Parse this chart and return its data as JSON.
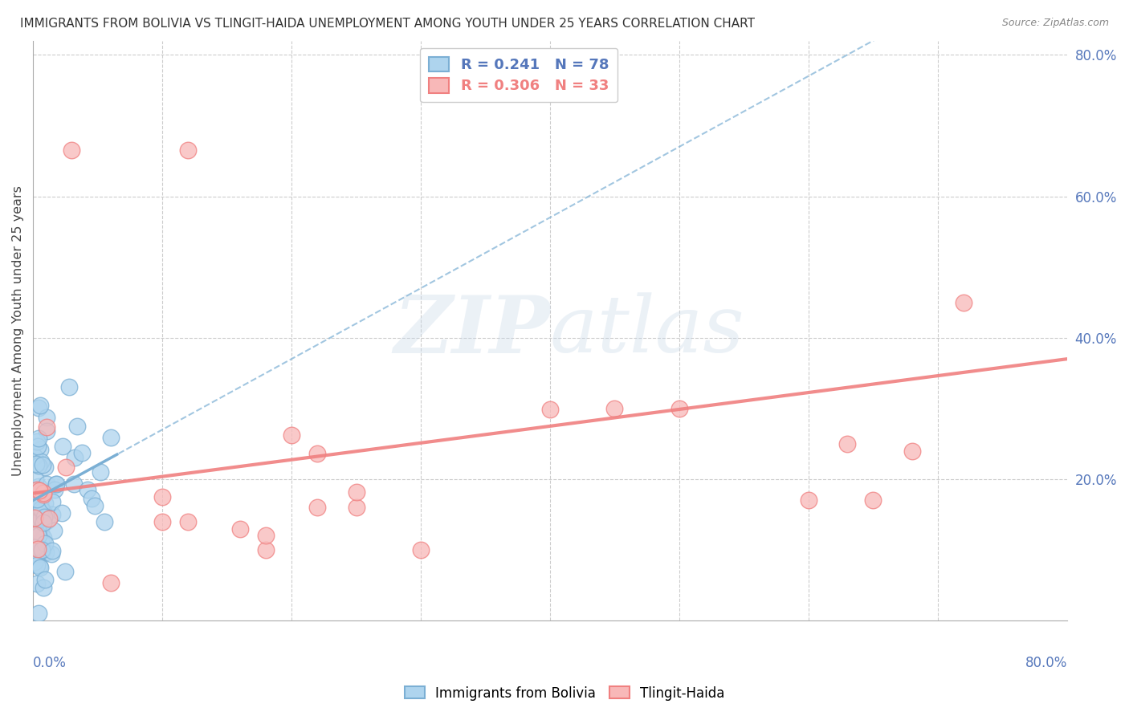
{
  "title": "IMMIGRANTS FROM BOLIVIA VS TLINGIT-HAIDA UNEMPLOYMENT AMONG YOUTH UNDER 25 YEARS CORRELATION CHART",
  "source": "Source: ZipAtlas.com",
  "ylabel": "Unemployment Among Youth under 25 years",
  "right_yticklabels": [
    "20.0%",
    "40.0%",
    "60.0%",
    "80.0%"
  ],
  "right_yticks": [
    0.2,
    0.4,
    0.6,
    0.8
  ],
  "bolivia_R": 0.241,
  "bolivia_N": 78,
  "tlingit_R": 0.306,
  "tlingit_N": 33,
  "bolivia_color": "#7BAFD4",
  "tlingit_color": "#F08080",
  "bolivia_fill": "#AED4EE",
  "tlingit_fill": "#F8B8B8",
  "legend_label_1": "Immigrants from Bolivia",
  "legend_label_2": "Tlingit-Haida",
  "watermark_part1": "ZIP",
  "watermark_part2": "atlas",
  "bg_color": "#FFFFFF",
  "grid_color": "#CCCCCC",
  "title_color": "#333333",
  "axis_label_color": "#5577BB",
  "xlim": [
    0.0,
    0.8
  ],
  "ylim": [
    0.0,
    0.82
  ]
}
